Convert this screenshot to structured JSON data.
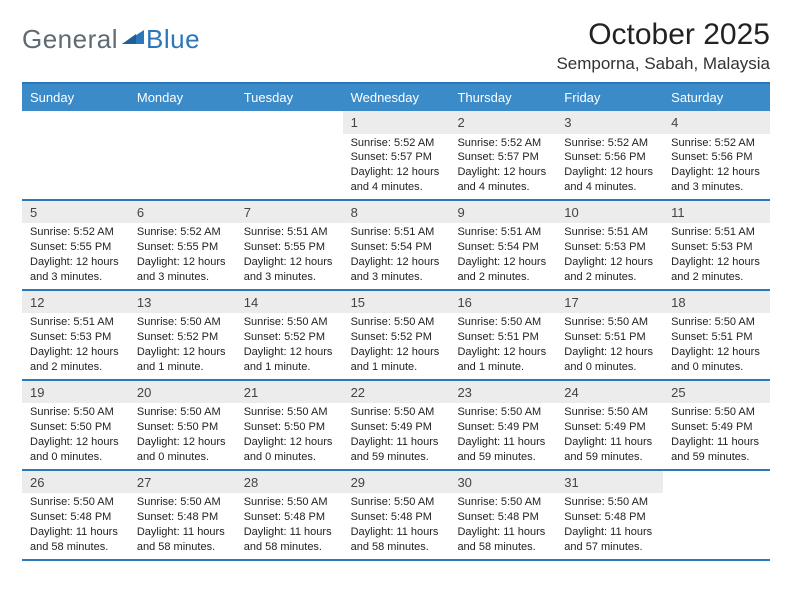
{
  "logo": {
    "part1": "General",
    "part2": "Blue"
  },
  "title": "October 2025",
  "location": "Semporna, Sabah, Malaysia",
  "colors": {
    "header_bar": "#3b8bc9",
    "border": "#2a77bb",
    "daynum_bg": "#ececec",
    "logo_gray": "#5f6a72",
    "logo_blue": "#2a77bb"
  },
  "dow": [
    "Sunday",
    "Monday",
    "Tuesday",
    "Wednesday",
    "Thursday",
    "Friday",
    "Saturday"
  ],
  "labels": {
    "sunrise": "Sunrise:",
    "sunset": "Sunset:",
    "daylight": "Daylight:"
  },
  "weeks": [
    [
      null,
      null,
      null,
      {
        "n": "1",
        "sr": "5:52 AM",
        "ss": "5:57 PM",
        "dl": "12 hours and 4 minutes."
      },
      {
        "n": "2",
        "sr": "5:52 AM",
        "ss": "5:57 PM",
        "dl": "12 hours and 4 minutes."
      },
      {
        "n": "3",
        "sr": "5:52 AM",
        "ss": "5:56 PM",
        "dl": "12 hours and 4 minutes."
      },
      {
        "n": "4",
        "sr": "5:52 AM",
        "ss": "5:56 PM",
        "dl": "12 hours and 3 minutes."
      }
    ],
    [
      {
        "n": "5",
        "sr": "5:52 AM",
        "ss": "5:55 PM",
        "dl": "12 hours and 3 minutes."
      },
      {
        "n": "6",
        "sr": "5:52 AM",
        "ss": "5:55 PM",
        "dl": "12 hours and 3 minutes."
      },
      {
        "n": "7",
        "sr": "5:51 AM",
        "ss": "5:55 PM",
        "dl": "12 hours and 3 minutes."
      },
      {
        "n": "8",
        "sr": "5:51 AM",
        "ss": "5:54 PM",
        "dl": "12 hours and 3 minutes."
      },
      {
        "n": "9",
        "sr": "5:51 AM",
        "ss": "5:54 PM",
        "dl": "12 hours and 2 minutes."
      },
      {
        "n": "10",
        "sr": "5:51 AM",
        "ss": "5:53 PM",
        "dl": "12 hours and 2 minutes."
      },
      {
        "n": "11",
        "sr": "5:51 AM",
        "ss": "5:53 PM",
        "dl": "12 hours and 2 minutes."
      }
    ],
    [
      {
        "n": "12",
        "sr": "5:51 AM",
        "ss": "5:53 PM",
        "dl": "12 hours and 2 minutes."
      },
      {
        "n": "13",
        "sr": "5:50 AM",
        "ss": "5:52 PM",
        "dl": "12 hours and 1 minute."
      },
      {
        "n": "14",
        "sr": "5:50 AM",
        "ss": "5:52 PM",
        "dl": "12 hours and 1 minute."
      },
      {
        "n": "15",
        "sr": "5:50 AM",
        "ss": "5:52 PM",
        "dl": "12 hours and 1 minute."
      },
      {
        "n": "16",
        "sr": "5:50 AM",
        "ss": "5:51 PM",
        "dl": "12 hours and 1 minute."
      },
      {
        "n": "17",
        "sr": "5:50 AM",
        "ss": "5:51 PM",
        "dl": "12 hours and 0 minutes."
      },
      {
        "n": "18",
        "sr": "5:50 AM",
        "ss": "5:51 PM",
        "dl": "12 hours and 0 minutes."
      }
    ],
    [
      {
        "n": "19",
        "sr": "5:50 AM",
        "ss": "5:50 PM",
        "dl": "12 hours and 0 minutes."
      },
      {
        "n": "20",
        "sr": "5:50 AM",
        "ss": "5:50 PM",
        "dl": "12 hours and 0 minutes."
      },
      {
        "n": "21",
        "sr": "5:50 AM",
        "ss": "5:50 PM",
        "dl": "12 hours and 0 minutes."
      },
      {
        "n": "22",
        "sr": "5:50 AM",
        "ss": "5:49 PM",
        "dl": "11 hours and 59 minutes."
      },
      {
        "n": "23",
        "sr": "5:50 AM",
        "ss": "5:49 PM",
        "dl": "11 hours and 59 minutes."
      },
      {
        "n": "24",
        "sr": "5:50 AM",
        "ss": "5:49 PM",
        "dl": "11 hours and 59 minutes."
      },
      {
        "n": "25",
        "sr": "5:50 AM",
        "ss": "5:49 PM",
        "dl": "11 hours and 59 minutes."
      }
    ],
    [
      {
        "n": "26",
        "sr": "5:50 AM",
        "ss": "5:48 PM",
        "dl": "11 hours and 58 minutes."
      },
      {
        "n": "27",
        "sr": "5:50 AM",
        "ss": "5:48 PM",
        "dl": "11 hours and 58 minutes."
      },
      {
        "n": "28",
        "sr": "5:50 AM",
        "ss": "5:48 PM",
        "dl": "11 hours and 58 minutes."
      },
      {
        "n": "29",
        "sr": "5:50 AM",
        "ss": "5:48 PM",
        "dl": "11 hours and 58 minutes."
      },
      {
        "n": "30",
        "sr": "5:50 AM",
        "ss": "5:48 PM",
        "dl": "11 hours and 58 minutes."
      },
      {
        "n": "31",
        "sr": "5:50 AM",
        "ss": "5:48 PM",
        "dl": "11 hours and 57 minutes."
      },
      null
    ]
  ]
}
